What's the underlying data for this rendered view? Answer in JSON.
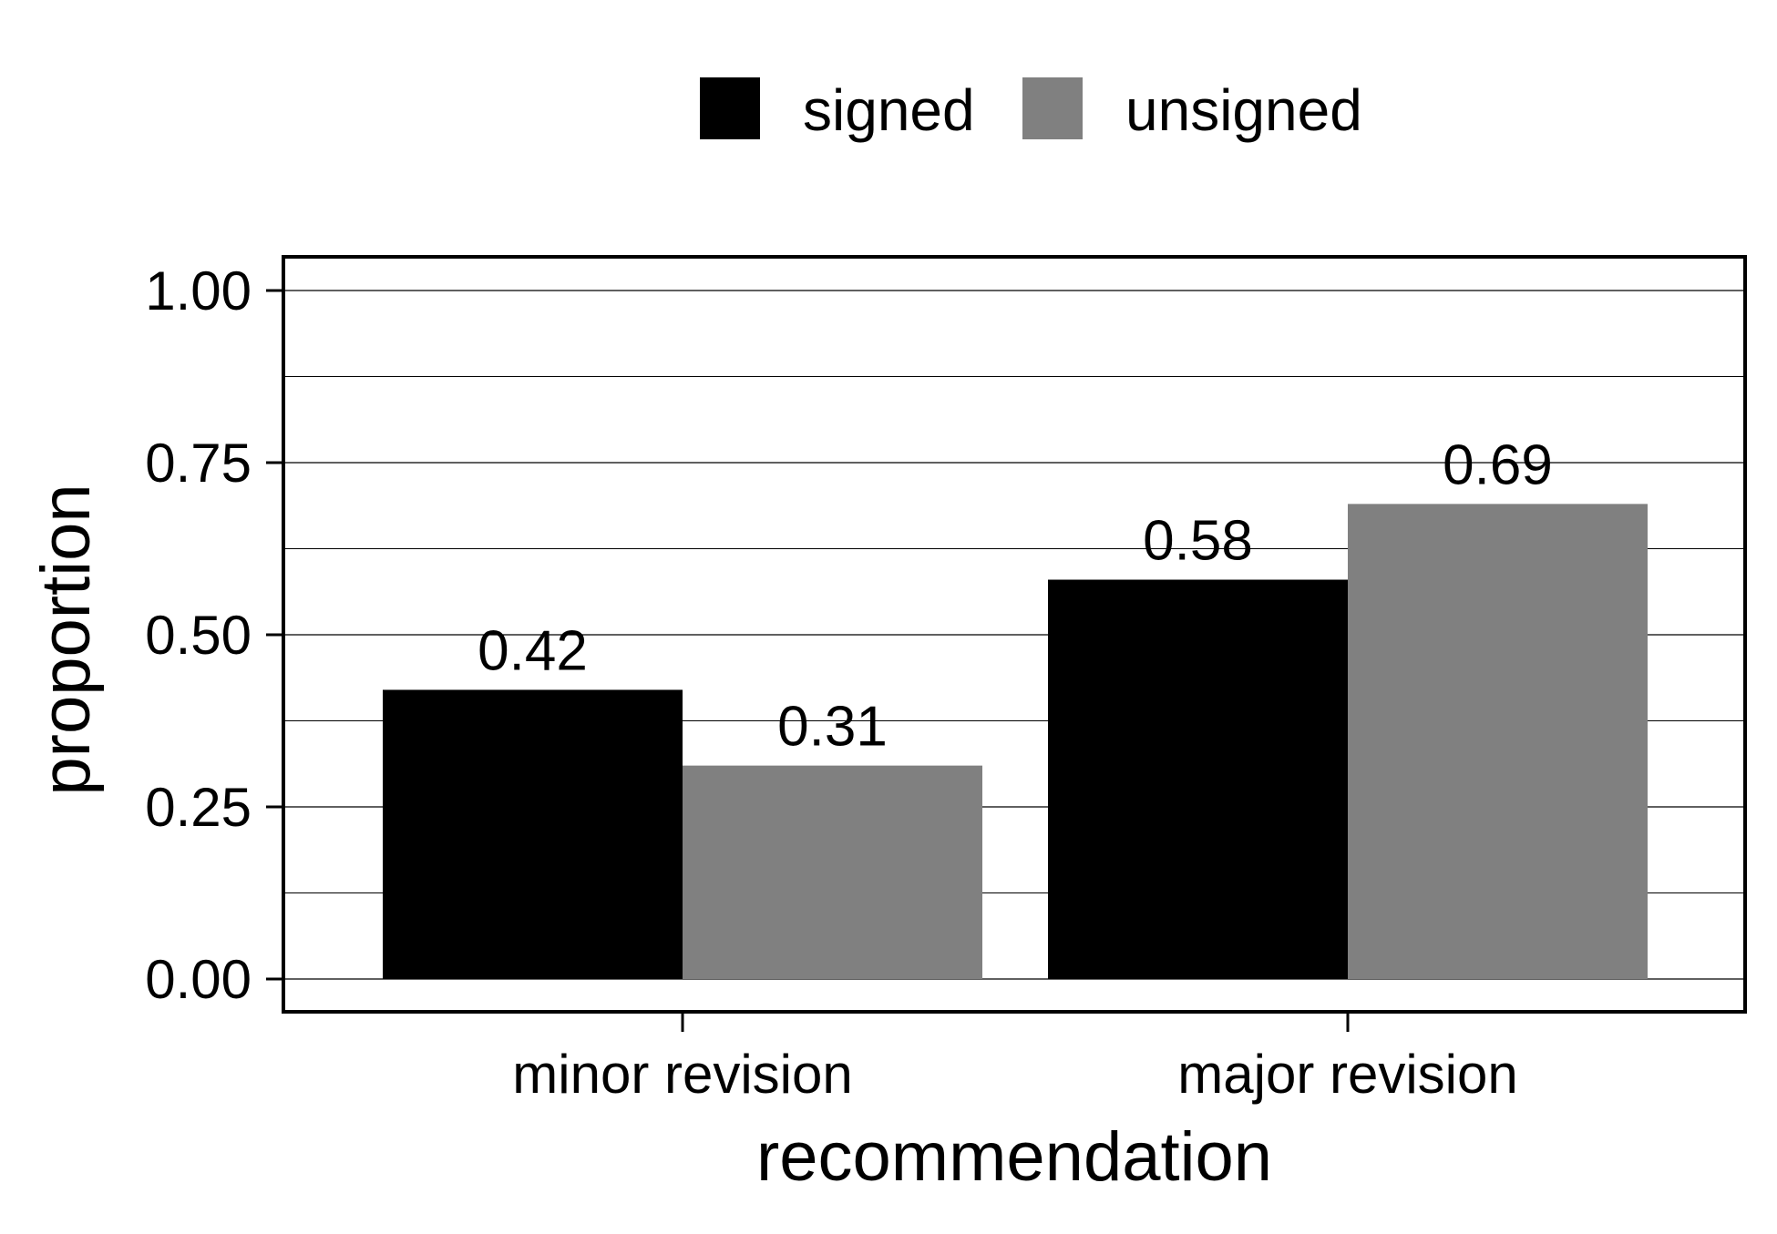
{
  "chart_data": {
    "type": "bar",
    "categories": [
      "minor revision",
      "major revision"
    ],
    "series": [
      {
        "name": "signed",
        "color": "#000000",
        "values": [
          0.42,
          0.58
        ]
      },
      {
        "name": "unsigned",
        "color": "#808080",
        "values": [
          0.31,
          0.69
        ]
      }
    ],
    "data_labels": [
      [
        "0.42",
        "0.58"
      ],
      [
        "0.31",
        "0.69"
      ]
    ],
    "title": "",
    "xlabel": "recommendation",
    "ylabel": "proportion",
    "ylim": [
      0,
      1.05
    ],
    "yticks": [
      0,
      0.25,
      0.5,
      0.75,
      1.0
    ],
    "ytick_labels": [
      "0.00",
      "0.25",
      "0.50",
      "0.75",
      "1.00"
    ],
    "minor_gridlines": [
      0.125,
      0.375,
      0.625,
      0.875
    ],
    "grid": "horizontal",
    "legend_position": "top-center"
  }
}
